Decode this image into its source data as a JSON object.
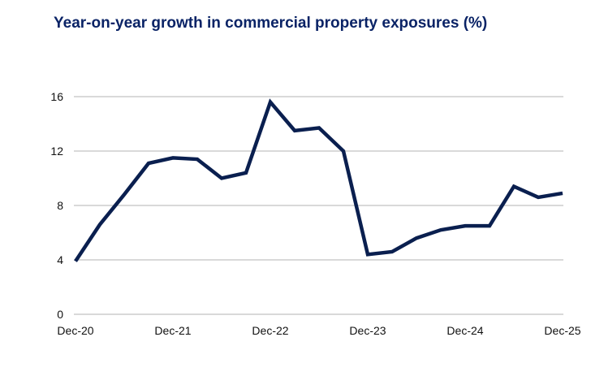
{
  "chart_data": {
    "type": "line",
    "title": "Year-on-year growth in commercial property exposures (%)",
    "xlabel": "",
    "ylabel": "",
    "ylim": [
      0,
      16
    ],
    "yticks": [
      "0",
      "4",
      "8",
      "12",
      "16"
    ],
    "xtick_labels": [
      "Dec-20",
      "Dec-21",
      "Dec-22",
      "Dec-23",
      "Dec-24",
      "Dec-25"
    ],
    "grid": "horizontal",
    "line_color": "#0a1f4f",
    "x": [
      "Dec-20",
      "Mar-21",
      "Jun-21",
      "Sep-21",
      "Dec-21",
      "Mar-22",
      "Jun-22",
      "Sep-22",
      "Dec-22",
      "Mar-23",
      "Jun-23",
      "Sep-23",
      "Dec-23",
      "Mar-24",
      "Jun-24",
      "Sep-24",
      "Dec-24",
      "Mar-25",
      "Jun-25",
      "Sep-25",
      "Dec-25"
    ],
    "series": [
      {
        "values": [
          3.9,
          6.6,
          8.8,
          11.1,
          11.5,
          11.4,
          10.0,
          10.4,
          15.6,
          13.5,
          13.7,
          12.0,
          4.4,
          4.6,
          5.6,
          6.2,
          6.5,
          6.5,
          9.4,
          8.6,
          8.9
        ]
      }
    ]
  }
}
